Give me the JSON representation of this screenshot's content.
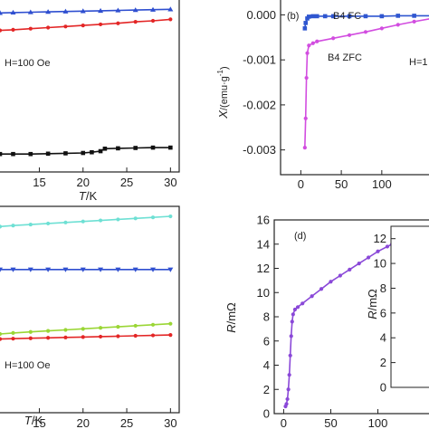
{
  "chart_data": [
    {
      "type": "line",
      "panel": "a",
      "xlabel_var": "T",
      "xlabel_unit": "/K",
      "xticks": [
        15,
        20,
        25,
        30
      ],
      "xlim": [
        10.5,
        31
      ],
      "ylim": [
        -3.5,
        1.3
      ],
      "annotations": [
        "H=100 Oe"
      ],
      "series": [
        {
          "color": "#2f4fd0",
          "marker": "triangle-up",
          "x": [
            10.5,
            12,
            14,
            16,
            18,
            20,
            22,
            24,
            26,
            28,
            30
          ],
          "y": [
            0.94,
            0.95,
            0.96,
            0.97,
            0.98,
            0.99,
            1.0,
            1.01,
            1.02,
            1.03,
            1.04
          ]
        },
        {
          "color": "#e32626",
          "marker": "circle",
          "x": [
            10.5,
            12,
            14,
            16,
            18,
            20,
            22,
            24,
            26,
            28,
            30
          ],
          "y": [
            0.45,
            0.47,
            0.5,
            0.53,
            0.56,
            0.59,
            0.62,
            0.65,
            0.69,
            0.72,
            0.76
          ]
        },
        {
          "color": "#111111",
          "marker": "square",
          "x": [
            10.5,
            12,
            14,
            16,
            18,
            20,
            21,
            22,
            22.5,
            24,
            26,
            28,
            30
          ],
          "y": [
            -3.0,
            -3.0,
            -3.0,
            -2.99,
            -2.98,
            -2.97,
            -2.95,
            -2.92,
            -2.85,
            -2.84,
            -2.83,
            -2.82,
            -2.82
          ]
        }
      ]
    },
    {
      "type": "line",
      "panel": "b",
      "label": "(b)",
      "xticks": [
        0,
        50,
        100
      ],
      "yticks": [
        "0.000",
        "-0.001",
        "-0.002",
        "-0.003"
      ],
      "ylabel_var": "X",
      "ylabel_unit": "/(emu·g",
      "ylabel_sup": "-1",
      "ylabel_close": ")",
      "xlim": [
        -25,
        165
      ],
      "ylim": [
        -0.00355,
        0.00033
      ],
      "annotations": [
        "B4 FC",
        "B4 ZFC",
        "H=1"
      ],
      "series": [
        {
          "name": "B4 FC",
          "color": "#2f56d0",
          "marker": "square",
          "x": [
            5,
            6,
            8,
            10,
            15,
            20,
            30,
            40,
            60,
            80,
            100,
            120,
            140,
            165
          ],
          "y": [
            -0.0003,
            -0.00018,
            -8e-05,
            -4e-05,
            -3e-05,
            -3e-05,
            -3e-05,
            -3e-05,
            -3e-05,
            -3e-05,
            -3e-05,
            -2e-05,
            -2e-05,
            -2e-05
          ]
        },
        {
          "name": "B4 ZFC",
          "color": "#d24de0",
          "marker": "circle",
          "x": [
            5,
            6,
            7,
            8,
            10,
            15,
            20,
            40,
            60,
            80,
            100,
            120,
            140,
            165
          ],
          "y": [
            -0.00295,
            -0.0023,
            -0.0014,
            -0.00085,
            -0.00068,
            -0.00063,
            -0.00059,
            -0.00052,
            -0.00045,
            -0.00038,
            -0.0003,
            -0.00022,
            -0.00015,
            -7e-05
          ]
        }
      ]
    },
    {
      "type": "line",
      "panel": "c",
      "xlabel_var": "T",
      "xlabel_unit": "/K",
      "xticks": [
        15,
        20,
        25,
        30
      ],
      "xlim": [
        10.5,
        31
      ],
      "ylim": [
        0,
        10
      ],
      "annotations": [
        "H=100 Oe"
      ],
      "series": [
        {
          "color": "#6ee0d4",
          "marker": "circle",
          "x": [
            10.5,
            12,
            14,
            16,
            18,
            20,
            22,
            24,
            26,
            28,
            30
          ],
          "y": [
            9.1,
            9.15,
            9.2,
            9.25,
            9.3,
            9.35,
            9.4,
            9.45,
            9.5,
            9.55,
            9.6
          ]
        },
        {
          "color": "#2f4fd0",
          "marker": "triangle-down",
          "x": [
            10.5,
            12,
            14,
            16,
            18,
            20,
            22,
            24,
            26,
            28,
            30
          ],
          "y": [
            7.0,
            7.0,
            7.0,
            7.0,
            7.0,
            7.0,
            7.0,
            7.0,
            7.0,
            7.0,
            7.0
          ]
        },
        {
          "color": "#9ad635",
          "marker": "circle",
          "x": [
            10.5,
            12,
            14,
            16,
            18,
            20,
            22,
            24,
            26,
            28,
            30
          ],
          "y": [
            3.85,
            3.9,
            3.95,
            4.0,
            4.05,
            4.1,
            4.15,
            4.2,
            4.25,
            4.3,
            4.35
          ]
        },
        {
          "color": "#e32626",
          "marker": "circle",
          "x": [
            10.5,
            12,
            14,
            16,
            18,
            20,
            22,
            24,
            26,
            28,
            30
          ],
          "y": [
            3.6,
            3.62,
            3.64,
            3.66,
            3.68,
            3.7,
            3.72,
            3.74,
            3.76,
            3.78,
            3.8
          ]
        }
      ]
    },
    {
      "type": "line",
      "panel": "d",
      "label": "(d)",
      "xticks": [
        0,
        50,
        100
      ],
      "yticks": [
        0,
        2,
        4,
        6,
        8,
        10,
        12,
        14,
        16
      ],
      "ylabel_var": "R",
      "ylabel_unit": "/mΩ",
      "xlim": [
        -10,
        160
      ],
      "ylim": [
        0,
        16
      ],
      "series": [
        {
          "color": "#8a48d8",
          "marker": "circle",
          "x": [
            2,
            3,
            4,
            5,
            6,
            7,
            8,
            9,
            10,
            12,
            15,
            20,
            30,
            40,
            50,
            60,
            70,
            80,
            90,
            100,
            110,
            115,
            120,
            130,
            140,
            150,
            160
          ],
          "y": [
            0.6,
            0.8,
            1.2,
            2.0,
            3.2,
            4.8,
            6.4,
            7.6,
            8.2,
            8.6,
            8.8,
            9.1,
            9.7,
            10.3,
            10.9,
            11.4,
            11.9,
            12.4,
            12.9,
            13.4,
            13.8,
            14.0,
            14.1,
            14.15,
            14.2,
            14.2,
            14.2
          ]
        }
      ]
    },
    {
      "type": "line",
      "panel": "d-inset",
      "yticks": [
        0,
        2,
        4,
        6,
        8,
        10,
        12
      ],
      "ylabel_var": "R",
      "ylabel_unit": "/mΩ",
      "ylim": [
        0,
        13
      ],
      "series": []
    }
  ]
}
